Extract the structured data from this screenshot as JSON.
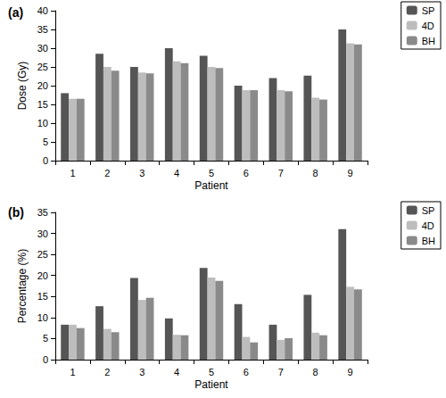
{
  "chart_data": [
    {
      "type": "bar",
      "title": "(a)",
      "x_label": "Patient",
      "y_label": "Dose (Gy)",
      "categories": [
        "1",
        "2",
        "3",
        "4",
        "5",
        "6",
        "7",
        "8",
        "9"
      ],
      "series": [
        {
          "name": "SP",
          "color": "#555555",
          "values": [
            18,
            28.5,
            25,
            30,
            28,
            20,
            22,
            22.7,
            35
          ]
        },
        {
          "name": "4D",
          "color": "#bdbdbd",
          "values": [
            16.5,
            25,
            23.5,
            26.5,
            25,
            18.8,
            18.8,
            16.8,
            31.3
          ]
        },
        {
          "name": "BH",
          "color": "#8a8a8a",
          "values": [
            16.5,
            24,
            23.3,
            26,
            24.7,
            18.8,
            18.5,
            16.3,
            31
          ]
        }
      ],
      "ylim": [
        0,
        40
      ],
      "yticks": [
        0,
        5,
        10,
        15,
        20,
        25,
        30,
        35,
        40
      ],
      "grid": false,
      "legend": "top-right"
    },
    {
      "type": "bar",
      "title": "(b)",
      "x_label": "Patient",
      "y_label": "Percentage (%)",
      "categories": [
        "1",
        "2",
        "3",
        "4",
        "5",
        "6",
        "7",
        "8",
        "9"
      ],
      "series": [
        {
          "name": "SP",
          "color": "#555555",
          "values": [
            8.3,
            12.7,
            19.4,
            9.8,
            21.8,
            13.2,
            8.3,
            15.4,
            31
          ]
        },
        {
          "name": "4D",
          "color": "#bdbdbd",
          "values": [
            8.3,
            7.3,
            14.2,
            5.9,
            19.5,
            5.4,
            4.7,
            6.4,
            17.3
          ]
        },
        {
          "name": "BH",
          "color": "#8a8a8a",
          "values": [
            7.5,
            6.5,
            14.7,
            5.8,
            18.7,
            4.1,
            5.1,
            5.8,
            16.7
          ]
        }
      ],
      "ylim": [
        0,
        35
      ],
      "yticks": [
        0,
        5,
        10,
        15,
        20,
        25,
        30,
        35
      ],
      "grid": false,
      "legend": "top-right"
    }
  ]
}
